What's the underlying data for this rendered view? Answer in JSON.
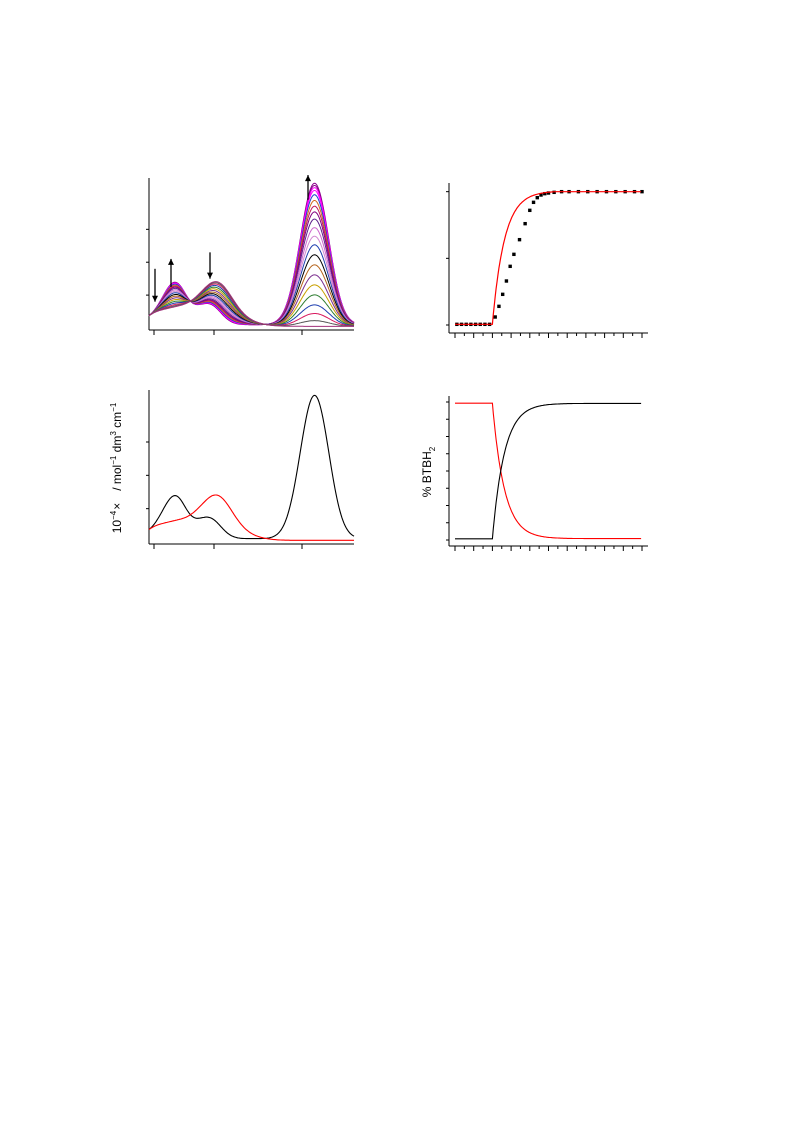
{
  "page": {
    "background": "#ffffff"
  },
  "chart_data": [
    {
      "type": "line",
      "description_role": "titration spectra",
      "x_domain": [
        -2.5,
        100
      ],
      "ylim": [
        0,
        0.9
      ],
      "tick_x": [
        0,
        30,
        74
      ],
      "tick_y": [
        0.2,
        0.4,
        0.6
      ],
      "arrow_directions": [
        "down",
        "up",
        "down",
        "up"
      ],
      "series_colors": [
        "#8b008b",
        "#8b008b",
        "#ff00ff",
        "#ff00ff",
        "#1c3fd1",
        "#d2691e",
        "#c2185b",
        "#800080",
        "#5c1f8a",
        "#cc66cc",
        "#d28ad2",
        "#1f3fb0",
        "#000000",
        "#b5651d",
        "#7b2f8f",
        "#c8a000",
        "#2e7d32",
        "#1f3fb0",
        "#d81b60",
        "#555555",
        "#a0307a"
      ],
      "fractions": [
        1.0,
        0.985,
        0.97,
        0.95,
        0.92,
        0.88,
        0.84,
        0.8,
        0.75,
        0.69,
        0.63,
        0.57,
        0.5,
        0.43,
        0.36,
        0.29,
        0.22,
        0.15,
        0.09,
        0.04,
        0.0
      ],
      "species_a": {
        "color": "#000000",
        "peaks": [
          [
            0,
            0.03,
            14
          ],
          [
            8,
            0.155,
            5.5
          ],
          [
            13,
            0.11,
            4.5
          ],
          [
            28,
            0.115,
            5.5
          ],
          [
            21,
            0.03,
            4
          ],
          [
            80,
            0.84,
            7
          ],
          [
            86,
            0.04,
            5
          ]
        ],
        "base": 0.02
      },
      "species_b": {
        "color": "#ff0000",
        "peaks": [
          [
            0,
            0.06,
            5.5
          ],
          [
            11,
            0.095,
            6.5
          ],
          [
            31,
            0.265,
            8
          ],
          [
            20,
            0.03,
            5
          ],
          [
            46,
            0.02,
            8
          ]
        ],
        "base": 0.01
      }
    },
    {
      "type": "scatter",
      "description_role": "titration fit",
      "xlim": [
        0,
        10
      ],
      "ylim": [
        0,
        1.05
      ],
      "tick_x": [
        0,
        0.5,
        1,
        1.5,
        2,
        2.5,
        3,
        3.5,
        4,
        4.5,
        5,
        5.5,
        6,
        6.5,
        7,
        7.5,
        8,
        8.5,
        9,
        9.5,
        10
      ],
      "tick_y": [
        0,
        0.5,
        1
      ],
      "points": [
        [
          0.1,
          0.005
        ],
        [
          0.35,
          0.005
        ],
        [
          0.6,
          0.005
        ],
        [
          0.85,
          0.005
        ],
        [
          1.1,
          0.005
        ],
        [
          1.35,
          0.005
        ],
        [
          1.6,
          0.005
        ],
        [
          1.85,
          0.005
        ],
        [
          2.15,
          0.06
        ],
        [
          2.35,
          0.14
        ],
        [
          2.55,
          0.23
        ],
        [
          2.75,
          0.33
        ],
        [
          2.95,
          0.44
        ],
        [
          3.15,
          0.53
        ],
        [
          3.45,
          0.64
        ],
        [
          3.75,
          0.76
        ],
        [
          4.0,
          0.86
        ],
        [
          4.2,
          0.92
        ],
        [
          4.4,
          0.955
        ],
        [
          4.6,
          0.975
        ],
        [
          4.8,
          0.985
        ],
        [
          5.0,
          0.99
        ],
        [
          5.3,
          0.995
        ],
        [
          5.7,
          1.0
        ],
        [
          6.1,
          1.0
        ],
        [
          6.6,
          1.0
        ],
        [
          7.1,
          1.0
        ],
        [
          7.6,
          1.0
        ],
        [
          8.1,
          1.0
        ],
        [
          8.6,
          1.0
        ],
        [
          9.1,
          1.0
        ],
        [
          9.6,
          1.0
        ],
        [
          10.0,
          1.0
        ]
      ],
      "fit_color": "#ff0000",
      "point_color": "#000000",
      "fit_model": {
        "onset": 2.0,
        "plateau": 1.0,
        "k": 2.6
      }
    },
    {
      "type": "line",
      "description_role": "species spectra",
      "x_domain": [
        -2.5,
        100
      ],
      "ylim": [
        0,
        0.9
      ],
      "tick_x": [
        0,
        30,
        74
      ],
      "tick_y": [
        0.2,
        0.4,
        0.6
      ],
      "ylabel_prefix": "10",
      "ylabel_exp": "−4",
      "ylabel_mid": "×",
      "ylabel_units": "/ mol",
      "ylabel_exp2": "−1",
      "ylabel_units2": " dm",
      "ylabel_exp3": "3",
      "ylabel_units3": " cm",
      "ylabel_exp4": "−1",
      "series": [
        {
          "color": "#000000",
          "role": "species_a"
        },
        {
          "color": "#ff0000",
          "role": "species_b"
        }
      ]
    },
    {
      "type": "line",
      "description_role": "species distribution",
      "xlim": [
        0,
        10
      ],
      "ylim": [
        0,
        100
      ],
      "tick_x": [
        0,
        0.5,
        1,
        1.5,
        2,
        2.5,
        3,
        3.5,
        4,
        4.5,
        5,
        5.5,
        6,
        6.5,
        7,
        7.5,
        8,
        8.5,
        9,
        9.5,
        10
      ],
      "tick_y": [
        0,
        12.5,
        25,
        37.5,
        50,
        62.5,
        75,
        87.5,
        100
      ],
      "ylabel_text": "% BTBH",
      "ylabel_sub": "2",
      "series": [
        {
          "color": "#ff0000",
          "role": "decreasing"
        },
        {
          "color": "#000000",
          "role": "increasing"
        }
      ],
      "model": {
        "onset": 2.0,
        "k": 2.6,
        "floor": 0.9,
        "ceiling": 99
      }
    }
  ]
}
